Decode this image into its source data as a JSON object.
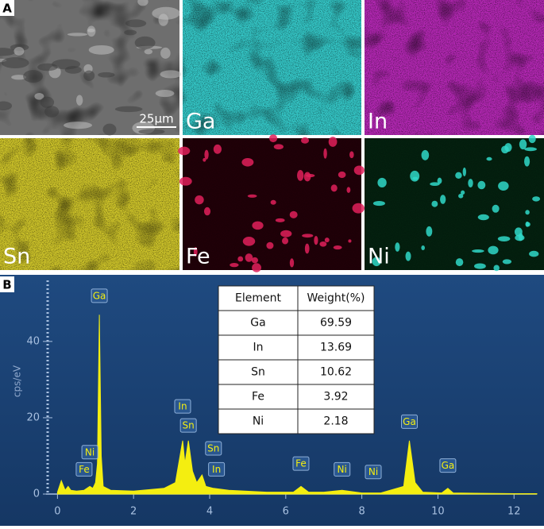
{
  "panel_a": {
    "label": "A",
    "scale_bar": "25µm",
    "maps": [
      {
        "element": "Ga",
        "color": "#35c8c8"
      },
      {
        "element": "In",
        "color": "#b428b4"
      },
      {
        "element": "Sn",
        "color": "#cfc52a"
      },
      {
        "element": "Fe",
        "color": "#e0205a"
      },
      {
        "element": "Ni",
        "color": "#30d8c8"
      }
    ]
  },
  "chart_data": {
    "type": "area",
    "panel_label": "B",
    "y_label": "cps/eV",
    "color": "#f4ee10",
    "x": [
      0,
      0.1,
      0.2,
      0.28,
      0.35,
      0.5,
      0.7,
      0.85,
      0.93,
      1.0,
      1.05,
      1.1,
      1.15,
      1.2,
      1.4,
      2.0,
      2.8,
      3.1,
      3.29,
      3.35,
      3.44,
      3.55,
      3.66,
      3.8,
      3.9,
      4.1,
      4.5,
      5.5,
      6.2,
      6.4,
      6.6,
      7.0,
      7.48,
      8.0,
      8.5,
      9.1,
      9.25,
      9.4,
      9.6,
      10.1,
      10.26,
      10.4,
      11,
      12,
      12.6
    ],
    "values": [
      0.5,
      3.5,
      1,
      2,
      1,
      0.8,
      1,
      2,
      1.5,
      3,
      8,
      47,
      10,
      2,
      1,
      0.8,
      1.5,
      3,
      14,
      8,
      14,
      6,
      3,
      5,
      2,
      1.5,
      1,
      0.5,
      0.5,
      2,
      0.5,
      0.5,
      1,
      0.3,
      0.3,
      2,
      14,
      3,
      0.5,
      0.3,
      1.5,
      0.3,
      0.2,
      0.1,
      0.1
    ],
    "xlim": [
      -0.3,
      12.6
    ],
    "ylim": [
      0,
      56
    ],
    "xticks": [
      0,
      2,
      4,
      6,
      8,
      10,
      12
    ],
    "yticks": [
      0,
      20,
      40
    ],
    "annotations": [
      {
        "text": "Ga",
        "x": 1.1,
        "y": 50
      },
      {
        "text": "Ni",
        "x": 0.85,
        "y": 9
      },
      {
        "text": "Fe",
        "x": 0.7,
        "y": 4.5
      },
      {
        "text": "In",
        "x": 3.29,
        "y": 21
      },
      {
        "text": "Sn",
        "x": 3.44,
        "y": 16
      },
      {
        "text": "Sn",
        "x": 4.1,
        "y": 10
      },
      {
        "text": "In",
        "x": 4.18,
        "y": 4.5
      },
      {
        "text": "Fe",
        "x": 6.4,
        "y": 6
      },
      {
        "text": "Ni",
        "x": 7.48,
        "y": 4.5
      },
      {
        "text": "Ni",
        "x": 8.3,
        "y": 3.8
      },
      {
        "text": "Ga",
        "x": 9.25,
        "y": 17
      },
      {
        "text": "Ga",
        "x": 10.26,
        "y": 5.5
      }
    ],
    "table": {
      "columns": [
        "Element",
        "Weight(%)"
      ],
      "rows": [
        [
          "Ga",
          69.59
        ],
        [
          "In",
          13.69
        ],
        [
          "Sn",
          10.62
        ],
        [
          "Fe",
          3.92
        ],
        [
          "Ni",
          2.18
        ]
      ]
    }
  }
}
